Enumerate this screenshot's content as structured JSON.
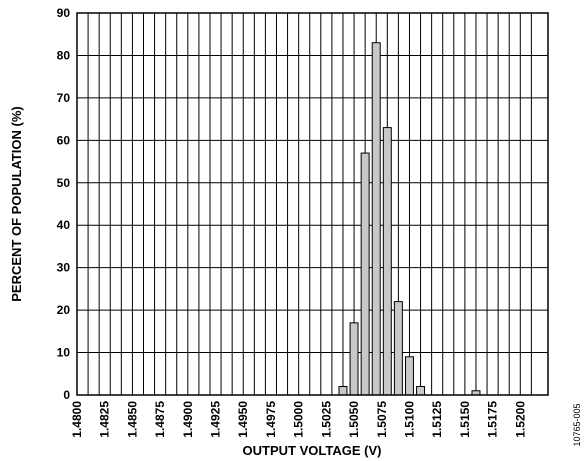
{
  "chart_data": {
    "type": "bar",
    "title": "",
    "xlabel": "OUTPUT VOLTAGE (V)",
    "ylabel": "PERCENT OF POPULATION (%)",
    "figure_id": "10765-005",
    "ylim": [
      0,
      90
    ],
    "yticks": [
      "0",
      "10",
      "20",
      "30",
      "40",
      "50",
      "60",
      "70",
      "80",
      "90"
    ],
    "xlim": [
      1.48,
      1.5225
    ],
    "xticks": [
      "1.4800",
      "1.4825",
      "1.4850",
      "1.4875",
      "1.4900",
      "1.4925",
      "1.4950",
      "1.4975",
      "1.5000",
      "1.5025",
      "1.5050",
      "1.5075",
      "1.5100",
      "1.5125",
      "1.5150",
      "1.5175",
      "1.5200"
    ],
    "grid": true,
    "bar_fill": "#c8c8c8",
    "categories": [
      1.504,
      1.505,
      1.506,
      1.507,
      1.508,
      1.509,
      1.51,
      1.511,
      1.512,
      1.516
    ],
    "values": [
      2,
      17,
      57,
      83,
      63,
      22,
      9,
      2,
      0,
      1
    ]
  }
}
